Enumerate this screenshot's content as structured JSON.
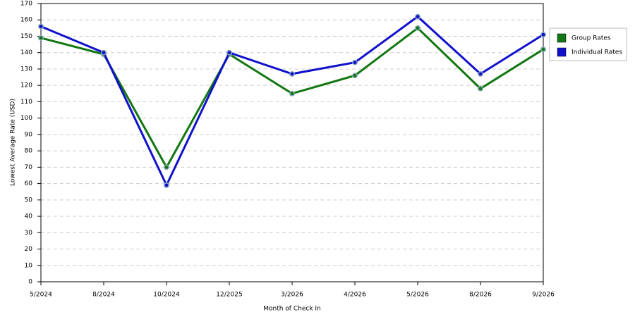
{
  "chart_data": {
    "type": "line",
    "x_label": "Month of Check In",
    "y_label": "Lowest Average Rate (USD)",
    "categories": [
      "5/2024",
      "8/2024",
      "10/2024",
      "12/2025",
      "3/2026",
      "4/2026",
      "5/2026",
      "8/2026",
      "9/2026"
    ],
    "series": [
      {
        "name": "Group Rates",
        "color": "#117711",
        "values": [
          149,
          139,
          70,
          139,
          115,
          126,
          155,
          118,
          142
        ]
      },
      {
        "name": "Individual Rates",
        "color": "#1111cc",
        "values": [
          156,
          140,
          59,
          140,
          127,
          134,
          162,
          127,
          151
        ]
      }
    ],
    "ylim": [
      0,
      170
    ],
    "yticks": [
      0,
      10,
      20,
      30,
      40,
      50,
      60,
      70,
      80,
      90,
      100,
      110,
      120,
      130,
      140,
      150,
      160,
      170
    ],
    "grid": true,
    "legend": "right"
  }
}
